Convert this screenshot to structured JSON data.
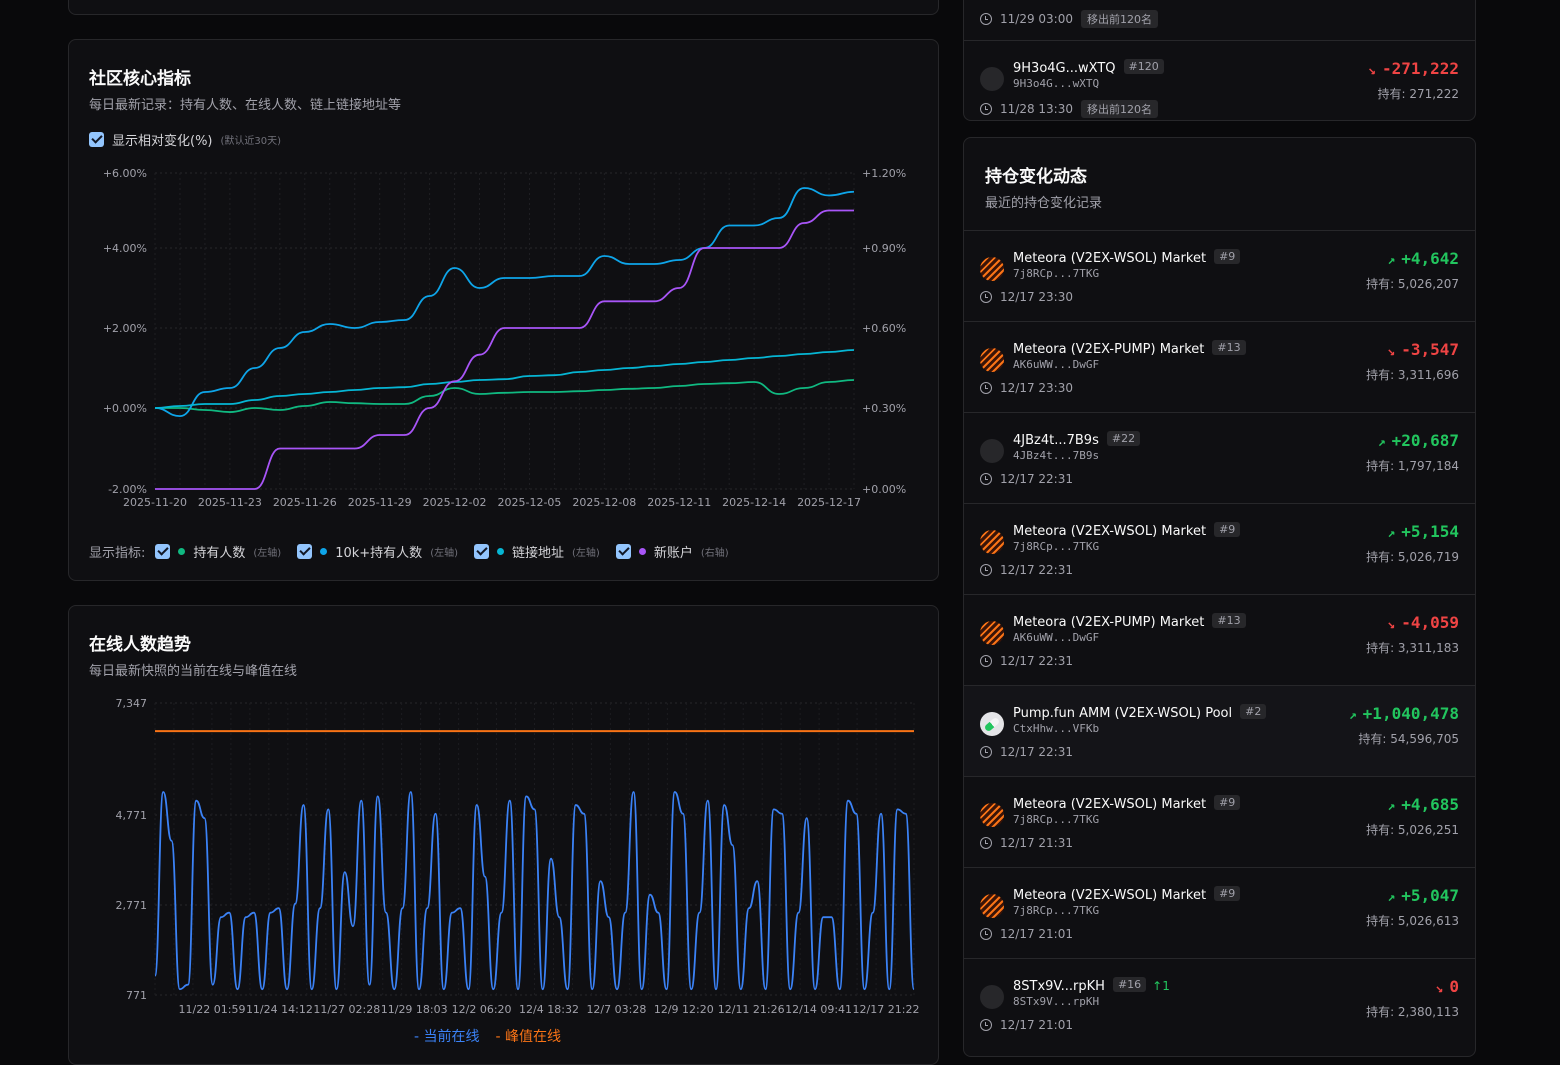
{
  "metrics": {
    "title": "社区核心指标",
    "subtitle": "每日最新记录：持有人数、在线人数、链上链接地址等",
    "toggle_label": "显示相对变化(%)",
    "toggle_note": "(默认近30天)",
    "legend_label": "显示指标:",
    "series": [
      {
        "label": "持有人数",
        "axis_note": "(左轴)",
        "color": "#10b981"
      },
      {
        "label": "10k+持有人数",
        "axis_note": "(左轴)",
        "color": "#0ea5e9"
      },
      {
        "label": "链接地址",
        "axis_note": "(左轴)",
        "color": "#06b6d4"
      },
      {
        "label": "新账户",
        "axis_note": "(右轴)",
        "color": "#a855f7"
      }
    ]
  },
  "online": {
    "title": "在线人数趋势",
    "subtitle": "每日最新快照的当前在线与峰值在线",
    "legend": [
      "当前在线",
      "峰值在线"
    ]
  },
  "feed": {
    "title": "持仓变化动态",
    "subtitle": "最近的持仓变化记录",
    "hold_prefix": "持有: ",
    "top_rows": [
      {
        "time": "11/29 03:00",
        "tag": "移出前120名"
      },
      {
        "name": "9H3o4G...wXTQ",
        "addr": "9H3o4G...wXTQ",
        "rank": "#120",
        "time": "11/28 13:30",
        "tag": "移出前120名",
        "delta": "-271,222",
        "hold": "271,222"
      }
    ],
    "rows": [
      {
        "icon": "meteora",
        "name": "Meteora (V2EX-WSOL) Market",
        "addr": "7j8RCp...7TKG",
        "rank": "#9",
        "time": "12/17 23:30",
        "dir": "up",
        "delta": "+4,642",
        "hold": "5,026,207"
      },
      {
        "icon": "meteora",
        "name": "Meteora (V2EX-PUMP) Market",
        "addr": "AK6uWW...DwGF",
        "rank": "#13",
        "time": "12/17 23:30",
        "dir": "down",
        "delta": "-3,547",
        "hold": "3,311,696"
      },
      {
        "icon": "plain",
        "name": "4JBz4t...7B9s",
        "addr": "4JBz4t...7B9s",
        "rank": "#22",
        "time": "12/17 22:31",
        "dir": "up",
        "delta": "+20,687",
        "hold": "1,797,184"
      },
      {
        "icon": "meteora",
        "name": "Meteora (V2EX-WSOL) Market",
        "addr": "7j8RCp...7TKG",
        "rank": "#9",
        "time": "12/17 22:31",
        "dir": "up",
        "delta": "+5,154",
        "hold": "5,026,719"
      },
      {
        "icon": "meteora",
        "name": "Meteora (V2EX-PUMP) Market",
        "addr": "AK6uWW...DwGF",
        "rank": "#13",
        "time": "12/17 22:31",
        "dir": "down",
        "delta": "-4,059",
        "hold": "3,311,183"
      },
      {
        "icon": "pump",
        "name": "Pump.fun AMM (V2EX-WSOL) Pool",
        "addr": "CtxHhw...VFKb",
        "rank": "#2",
        "time": "12/17 22:31",
        "dir": "up",
        "delta": "+1,040,478",
        "hold": "54,596,705"
      },
      {
        "icon": "meteora",
        "name": "Meteora (V2EX-WSOL) Market",
        "addr": "7j8RCp...7TKG",
        "rank": "#9",
        "time": "12/17 21:31",
        "dir": "up",
        "delta": "+4,685",
        "hold": "5,026,251"
      },
      {
        "icon": "meteora",
        "name": "Meteora (V2EX-WSOL) Market",
        "addr": "7j8RCp...7TKG",
        "rank": "#9",
        "time": "12/17 21:01",
        "dir": "up",
        "delta": "+5,047",
        "hold": "5,026,613"
      },
      {
        "icon": "plain",
        "name": "8STx9V...rpKH",
        "addr": "8STx9V...rpKH",
        "rank": "#16",
        "rank_change": "↑1",
        "time": "12/17 21:01",
        "dir": "down",
        "delta": "0",
        "hold": "2,380,113"
      }
    ]
  },
  "chart_data": [
    {
      "type": "line",
      "title": "社区核心指标",
      "x": [
        "2025-11-20",
        "2025-11-21",
        "2025-11-22",
        "2025-11-23",
        "2025-11-24",
        "2025-11-25",
        "2025-11-26",
        "2025-11-27",
        "2025-11-28",
        "2025-11-29",
        "2025-11-30",
        "2025-12-01",
        "2025-12-02",
        "2025-12-03",
        "2025-12-04",
        "2025-12-05",
        "2025-12-06",
        "2025-12-07",
        "2025-12-08",
        "2025-12-09",
        "2025-12-10",
        "2025-12-11",
        "2025-12-12",
        "2025-12-13",
        "2025-12-14",
        "2025-12-15",
        "2025-12-16",
        "2025-12-17",
        "2025-12-18"
      ],
      "x_ticks": [
        "2025-11-20",
        "2025-11-23",
        "2025-11-26",
        "2025-11-29",
        "2025-12-02",
        "2025-12-05",
        "2025-12-08",
        "2025-12-11",
        "2025-12-14",
        "2025-12-17"
      ],
      "y_left_ticks": [
        "+6.00%",
        "+4.00%",
        "+2.00%",
        "+0.00%",
        "-2.00%"
      ],
      "y_right_ticks": [
        "+1.20%",
        "+0.90%",
        "+0.60%",
        "+0.30%",
        "+0.00%"
      ],
      "ylim_left": [
        -2,
        6
      ],
      "ylim_right": [
        0,
        1.2
      ],
      "series": [
        {
          "name": "持有人数",
          "axis": "left",
          "color": "#10b981",
          "values": [
            0,
            0,
            -0.05,
            -0.1,
            0,
            -0.05,
            0.05,
            0.15,
            0.12,
            0.1,
            0.1,
            0.3,
            0.5,
            0.35,
            0.38,
            0.4,
            0.4,
            0.42,
            0.45,
            0.48,
            0.5,
            0.55,
            0.6,
            0.62,
            0.65,
            0.35,
            0.5,
            0.65,
            0.7
          ]
        },
        {
          "name": "10k+持有人数",
          "axis": "left",
          "color": "#0ea5e9",
          "values": [
            0,
            -0.2,
            0.4,
            0.5,
            1.0,
            1.5,
            1.9,
            2.1,
            2.0,
            2.15,
            2.2,
            2.8,
            3.5,
            3.0,
            3.25,
            3.25,
            3.3,
            3.3,
            3.8,
            3.6,
            3.6,
            3.7,
            4.0,
            4.6,
            4.6,
            4.8,
            5.6,
            5.4,
            5.5
          ]
        },
        {
          "name": "链接地址",
          "axis": "left",
          "color": "#06b6d4",
          "values": [
            0,
            0.05,
            0.1,
            0.1,
            0.2,
            0.3,
            0.35,
            0.4,
            0.45,
            0.5,
            0.52,
            0.6,
            0.65,
            0.7,
            0.72,
            0.8,
            0.82,
            0.9,
            0.95,
            1.0,
            1.05,
            1.1,
            1.15,
            1.2,
            1.25,
            1.3,
            1.35,
            1.4,
            1.45
          ]
        },
        {
          "name": "新账户",
          "axis": "right",
          "color": "#a855f7",
          "values": [
            0,
            0,
            0,
            0,
            0,
            0.15,
            0.15,
            0.15,
            0.15,
            0.2,
            0.2,
            0.3,
            0.4,
            0.5,
            0.6,
            0.6,
            0.6,
            0.6,
            0.7,
            0.7,
            0.7,
            0.75,
            0.9,
            0.9,
            0.9,
            0.9,
            1.0,
            1.05,
            1.05
          ]
        }
      ]
    },
    {
      "type": "line",
      "title": "在线人数趋势",
      "x_ticks": [
        "11/22 01:59",
        "11/24 14:12",
        "11/27 02:28",
        "11/29 18:03",
        "12/2 06:20",
        "12/4 18:32",
        "12/7 03:28",
        "12/9 12:20",
        "12/11 21:26",
        "12/14 09:41",
        "12/17 21:22"
      ],
      "y_ticks": [
        7347,
        4771,
        2771,
        771
      ],
      "ylim": [
        771,
        7347
      ],
      "series": [
        {
          "name": "当前在线",
          "color": "#3b82f6",
          "values": [
            1200,
            5300,
            4200,
            900,
            1000,
            5100,
            4700,
            1000,
            2500,
            2600,
            900,
            2500,
            2600,
            900,
            2600,
            2700,
            900,
            2800,
            5000,
            900,
            2700,
            4900,
            900,
            3500,
            2300,
            5100,
            1000,
            5200,
            2600,
            900,
            2700,
            5300,
            900,
            2700,
            4800,
            900,
            2600,
            2700,
            900,
            5000,
            3400,
            900,
            2600,
            5100,
            900,
            5200,
            4900,
            900,
            3800,
            2500,
            900,
            5000,
            4800,
            900,
            3300,
            2500,
            900,
            2600,
            5300,
            900,
            3000,
            2600,
            900,
            5300,
            4800,
            900,
            2600,
            5100,
            900,
            5000,
            4100,
            900,
            2700,
            3300,
            900,
            4900,
            4800,
            900,
            2600,
            4700,
            900,
            2500,
            2500,
            900,
            5100,
            4800,
            900,
            2600,
            4800,
            900,
            4900,
            4800,
            900
          ]
        },
        {
          "name": "峰值在线",
          "color": "#f97316",
          "values": [
            6700,
            6700
          ]
        }
      ]
    }
  ]
}
